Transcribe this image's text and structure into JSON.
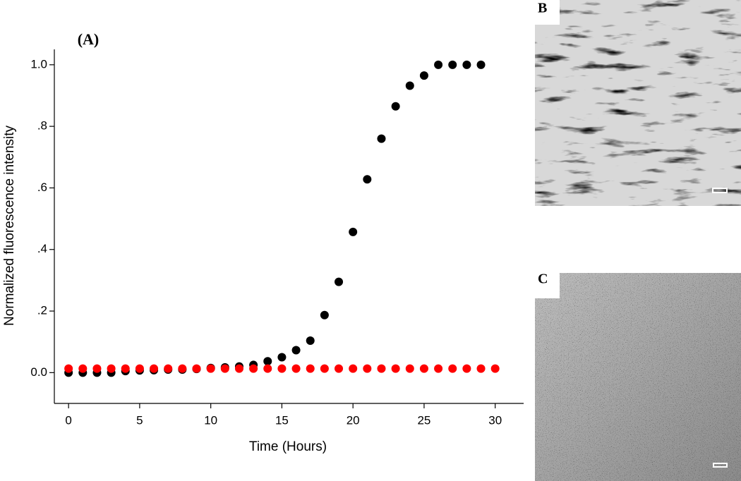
{
  "chart_data": {
    "type": "scatter",
    "annotation": "(A)",
    "xlabel": "Time (Hours)",
    "ylabel": "Normalized fluorescence intensity",
    "xlim": [
      -1,
      32
    ],
    "xticks": [
      0,
      5,
      10,
      15,
      20,
      25,
      30
    ],
    "ylim": [
      -0.1,
      1.05
    ],
    "yticks": [
      {
        "value": 0,
        "label": "0.0"
      },
      {
        "value": 0.2,
        "label": ".2"
      },
      {
        "value": 0.4,
        "label": ".4"
      },
      {
        "value": 0.6,
        "label": ".6"
      },
      {
        "value": 0.8,
        "label": ".8"
      },
      {
        "value": 1,
        "label": "1.0"
      }
    ],
    "series": [
      {
        "color": "#000000",
        "x": [
          0,
          1,
          2,
          3,
          4,
          5,
          6,
          7,
          8,
          9,
          10,
          11,
          12,
          13,
          14,
          15,
          16,
          17,
          18,
          19,
          20,
          21,
          22,
          23,
          24,
          25,
          26,
          27,
          28,
          29
        ],
        "values": [
          0,
          0,
          0,
          0,
          0.005,
          0.007,
          0.008,
          0.01,
          0.01,
          0.012,
          0.015,
          0.017,
          0.02,
          0.025,
          0.037,
          0.05,
          0.073,
          0.104,
          0.187,
          0.295,
          0.457,
          0.628,
          0.76,
          0.865,
          0.932,
          0.965,
          1,
          1,
          1,
          1
        ]
      },
      {
        "color": "#ff0000",
        "x": [
          0,
          1,
          2,
          3,
          4,
          5,
          6,
          7,
          8,
          9,
          10,
          11,
          12,
          13,
          14,
          15,
          16,
          17,
          18,
          19,
          20,
          21,
          22,
          23,
          24,
          25,
          26,
          27,
          28,
          29,
          30
        ],
        "values": [
          0.013,
          0.013,
          0.013,
          0.013,
          0.013,
          0.013,
          0.013,
          0.013,
          0.013,
          0.013,
          0.013,
          0.013,
          0.013,
          0.013,
          0.013,
          0.013,
          0.013,
          0.013,
          0.013,
          0.013,
          0.013,
          0.013,
          0.013,
          0.013,
          0.013,
          0.013,
          0.013,
          0.013,
          0.013,
          0.013,
          0.013
        ]
      }
    ]
  },
  "panels": [
    {
      "label": "B"
    },
    {
      "label": "C"
    }
  ]
}
